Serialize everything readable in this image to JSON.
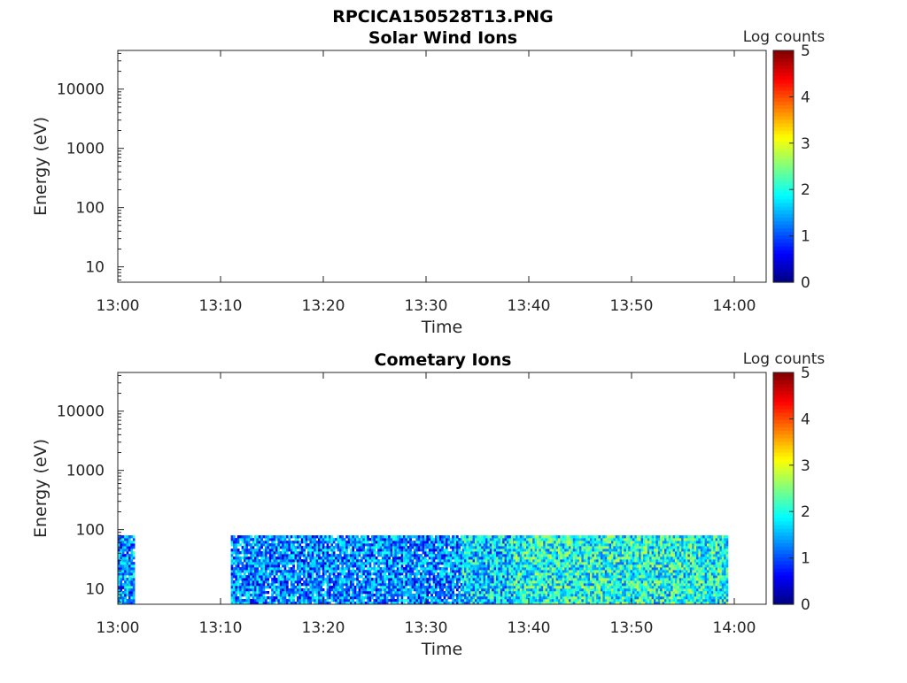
{
  "figure_title": "RPCICA150528T13.PNG",
  "colormap": [
    "#00007f",
    "#0000ff",
    "#007fff",
    "#00ffff",
    "#7fff7f",
    "#ffff00",
    "#ff7f00",
    "#ff0000",
    "#7f0000"
  ],
  "chart_data": [
    {
      "type": "heatmap",
      "title": "Solar Wind Ions",
      "xlabel": "Time",
      "ylabel": "Energy (eV)",
      "x_ticks": [
        "13:00",
        "13:10",
        "13:20",
        "13:30",
        "13:40",
        "13:50",
        "14:00"
      ],
      "x_range_minutes": [
        0,
        63.3
      ],
      "y_scale": "log",
      "y_ticks": [
        "10",
        "100",
        "1000",
        "10000"
      ],
      "y_range": [
        5.5,
        45000
      ],
      "colorbar_label": "Log counts",
      "colorbar_ticks": [
        "0",
        "1",
        "2",
        "3",
        "4",
        "5"
      ],
      "color_range": [
        0,
        5
      ],
      "data_present": false,
      "segments": []
    },
    {
      "type": "heatmap",
      "title": "Cometary Ions",
      "xlabel": "Time",
      "ylabel": "Energy (eV)",
      "x_ticks": [
        "13:00",
        "13:10",
        "13:20",
        "13:30",
        "13:40",
        "13:50",
        "14:00"
      ],
      "x_range_minutes": [
        0,
        63.3
      ],
      "y_scale": "log",
      "y_ticks": [
        "10",
        "100",
        "1000",
        "10000"
      ],
      "y_range": [
        5.5,
        45000
      ],
      "colorbar_label": "Log counts",
      "colorbar_ticks": [
        "0",
        "1",
        "2",
        "3",
        "4",
        "5"
      ],
      "color_range": [
        0,
        5
      ],
      "data_present": true,
      "energy_band_eV": [
        5.5,
        80
      ],
      "segments": [
        {
          "start_min": 0.0,
          "end_min": 1.5,
          "mean_log_counts": 1.3
        },
        {
          "start_min": 11.0,
          "end_min": 33.5,
          "mean_log_counts": 1.2
        },
        {
          "start_min": 33.5,
          "end_min": 38.5,
          "mean_log_counts": 1.7
        },
        {
          "start_min": 38.5,
          "end_min": 59.3,
          "mean_log_counts": 2.0
        }
      ]
    }
  ]
}
